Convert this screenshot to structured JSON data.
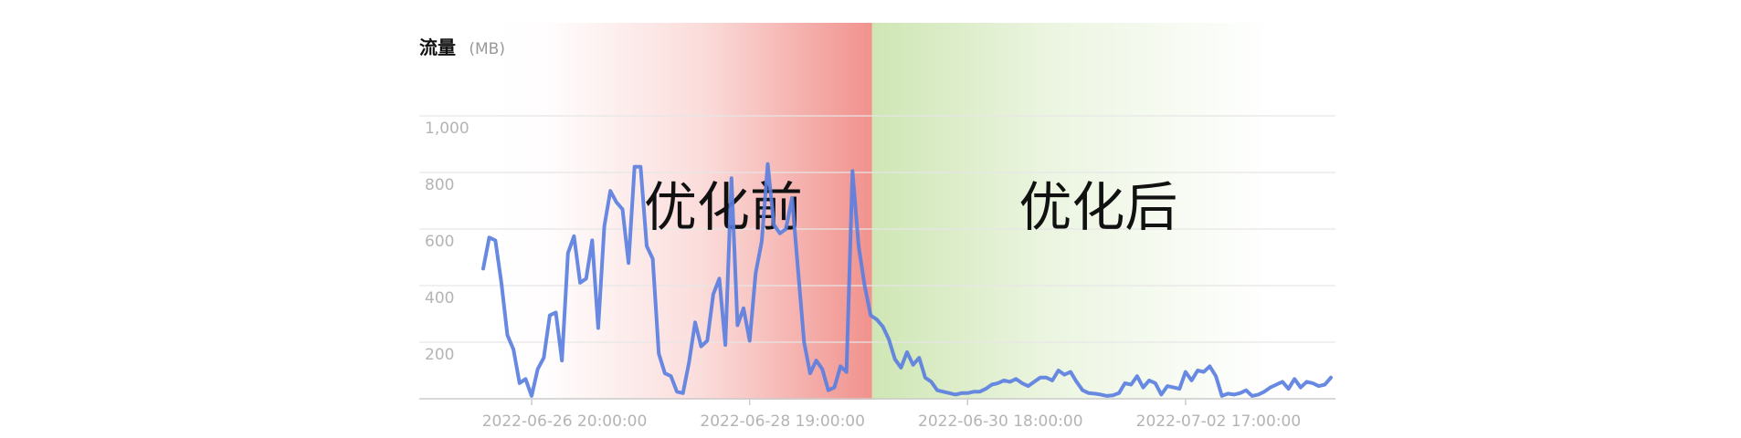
{
  "chart_data": {
    "type": "line",
    "ylabel": "流量",
    "yunit": "(MB)",
    "ylim": [
      0,
      1000
    ],
    "yticks": [
      200,
      400,
      600,
      800,
      1000
    ],
    "ytick_labels": [
      "200",
      "400",
      "600",
      "800",
      "1,000"
    ],
    "xtick_labels": [
      "2022-06-26 20:00:00",
      "2022-06-28 19:00:00",
      "2022-06-30 18:00:00",
      "2022-07-02 17:00:00"
    ],
    "xtick_index": [
      8,
      44,
      80,
      116
    ],
    "regions": [
      {
        "label": "优化前",
        "from_index": 0,
        "to_index": 64,
        "color": "#f08c87"
      },
      {
        "label": "优化后",
        "from_index": 64,
        "to_index": 132,
        "color": "#cfe6b4"
      }
    ],
    "grid": true,
    "legend": "none",
    "series": [
      {
        "color": "#5b7fe0",
        "values": [
          460,
          570,
          560,
          410,
          225,
          175,
          55,
          70,
          10,
          105,
          145,
          295,
          305,
          135,
          515,
          575,
          410,
          425,
          560,
          250,
          610,
          735,
          695,
          670,
          480,
          820,
          820,
          540,
          495,
          160,
          90,
          80,
          25,
          20,
          130,
          270,
          185,
          205,
          370,
          425,
          190,
          780,
          260,
          320,
          205,
          445,
          555,
          830,
          615,
          585,
          600,
          710,
          455,
          200,
          90,
          135,
          105,
          30,
          40,
          115,
          95,
          805,
          540,
          400,
          295,
          280,
          255,
          210,
          140,
          110,
          165,
          120,
          145,
          75,
          60,
          30,
          25,
          20,
          15,
          20,
          20,
          25,
          25,
          35,
          50,
          55,
          65,
          60,
          70,
          55,
          45,
          60,
          75,
          75,
          65,
          100,
          85,
          95,
          60,
          30,
          20,
          18,
          15,
          10,
          12,
          20,
          55,
          50,
          80,
          40,
          65,
          55,
          15,
          45,
          40,
          35,
          95,
          65,
          100,
          95,
          115,
          80,
          10,
          18,
          15,
          20,
          30,
          10,
          15,
          25,
          40,
          50,
          60,
          35,
          70,
          40,
          60,
          55,
          45,
          50,
          75
        ],
        "x_start": 0,
        "x_step": 0.5
      }
    ]
  }
}
